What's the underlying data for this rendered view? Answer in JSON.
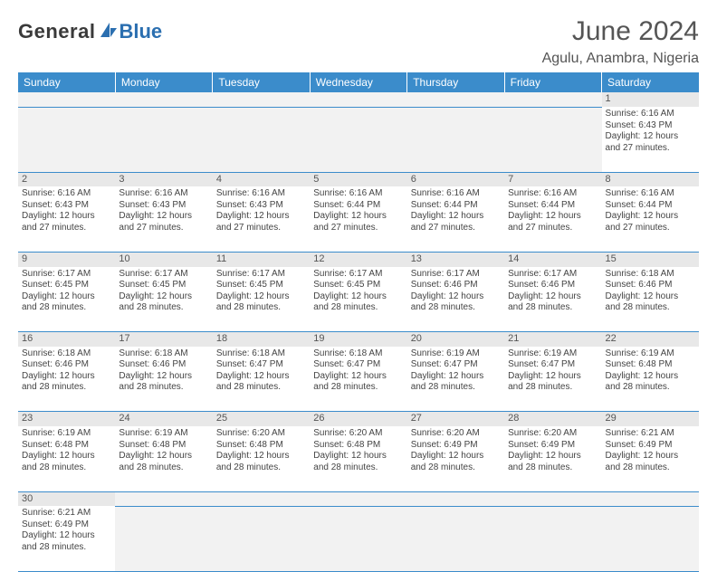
{
  "brand": {
    "name1": "General",
    "name2": "Blue",
    "color1": "#3a3a3a",
    "color2": "#2b6fb0"
  },
  "title": "June 2024",
  "location": "Agulu, Anambra, Nigeria",
  "colors": {
    "header_bg": "#3b8ccb",
    "header_fg": "#ffffff",
    "daynum_bg": "#e8e8e8",
    "border": "#3b8ccb",
    "blank_bg": "#f2f2f2",
    "text": "#444444"
  },
  "weekdays": [
    "Sunday",
    "Monday",
    "Tuesday",
    "Wednesday",
    "Thursday",
    "Friday",
    "Saturday"
  ],
  "weeks": [
    [
      null,
      null,
      null,
      null,
      null,
      null,
      {
        "n": "1",
        "sunrise": "6:16 AM",
        "sunset": "6:43 PM",
        "daylight": "12 hours and 27 minutes."
      }
    ],
    [
      {
        "n": "2",
        "sunrise": "6:16 AM",
        "sunset": "6:43 PM",
        "daylight": "12 hours and 27 minutes."
      },
      {
        "n": "3",
        "sunrise": "6:16 AM",
        "sunset": "6:43 PM",
        "daylight": "12 hours and 27 minutes."
      },
      {
        "n": "4",
        "sunrise": "6:16 AM",
        "sunset": "6:43 PM",
        "daylight": "12 hours and 27 minutes."
      },
      {
        "n": "5",
        "sunrise": "6:16 AM",
        "sunset": "6:44 PM",
        "daylight": "12 hours and 27 minutes."
      },
      {
        "n": "6",
        "sunrise": "6:16 AM",
        "sunset": "6:44 PM",
        "daylight": "12 hours and 27 minutes."
      },
      {
        "n": "7",
        "sunrise": "6:16 AM",
        "sunset": "6:44 PM",
        "daylight": "12 hours and 27 minutes."
      },
      {
        "n": "8",
        "sunrise": "6:16 AM",
        "sunset": "6:44 PM",
        "daylight": "12 hours and 27 minutes."
      }
    ],
    [
      {
        "n": "9",
        "sunrise": "6:17 AM",
        "sunset": "6:45 PM",
        "daylight": "12 hours and 28 minutes."
      },
      {
        "n": "10",
        "sunrise": "6:17 AM",
        "sunset": "6:45 PM",
        "daylight": "12 hours and 28 minutes."
      },
      {
        "n": "11",
        "sunrise": "6:17 AM",
        "sunset": "6:45 PM",
        "daylight": "12 hours and 28 minutes."
      },
      {
        "n": "12",
        "sunrise": "6:17 AM",
        "sunset": "6:45 PM",
        "daylight": "12 hours and 28 minutes."
      },
      {
        "n": "13",
        "sunrise": "6:17 AM",
        "sunset": "6:46 PM",
        "daylight": "12 hours and 28 minutes."
      },
      {
        "n": "14",
        "sunrise": "6:17 AM",
        "sunset": "6:46 PM",
        "daylight": "12 hours and 28 minutes."
      },
      {
        "n": "15",
        "sunrise": "6:18 AM",
        "sunset": "6:46 PM",
        "daylight": "12 hours and 28 minutes."
      }
    ],
    [
      {
        "n": "16",
        "sunrise": "6:18 AM",
        "sunset": "6:46 PM",
        "daylight": "12 hours and 28 minutes."
      },
      {
        "n": "17",
        "sunrise": "6:18 AM",
        "sunset": "6:46 PM",
        "daylight": "12 hours and 28 minutes."
      },
      {
        "n": "18",
        "sunrise": "6:18 AM",
        "sunset": "6:47 PM",
        "daylight": "12 hours and 28 minutes."
      },
      {
        "n": "19",
        "sunrise": "6:18 AM",
        "sunset": "6:47 PM",
        "daylight": "12 hours and 28 minutes."
      },
      {
        "n": "20",
        "sunrise": "6:19 AM",
        "sunset": "6:47 PM",
        "daylight": "12 hours and 28 minutes."
      },
      {
        "n": "21",
        "sunrise": "6:19 AM",
        "sunset": "6:47 PM",
        "daylight": "12 hours and 28 minutes."
      },
      {
        "n": "22",
        "sunrise": "6:19 AM",
        "sunset": "6:48 PM",
        "daylight": "12 hours and 28 minutes."
      }
    ],
    [
      {
        "n": "23",
        "sunrise": "6:19 AM",
        "sunset": "6:48 PM",
        "daylight": "12 hours and 28 minutes."
      },
      {
        "n": "24",
        "sunrise": "6:19 AM",
        "sunset": "6:48 PM",
        "daylight": "12 hours and 28 minutes."
      },
      {
        "n": "25",
        "sunrise": "6:20 AM",
        "sunset": "6:48 PM",
        "daylight": "12 hours and 28 minutes."
      },
      {
        "n": "26",
        "sunrise": "6:20 AM",
        "sunset": "6:48 PM",
        "daylight": "12 hours and 28 minutes."
      },
      {
        "n": "27",
        "sunrise": "6:20 AM",
        "sunset": "6:49 PM",
        "daylight": "12 hours and 28 minutes."
      },
      {
        "n": "28",
        "sunrise": "6:20 AM",
        "sunset": "6:49 PM",
        "daylight": "12 hours and 28 minutes."
      },
      {
        "n": "29",
        "sunrise": "6:21 AM",
        "sunset": "6:49 PM",
        "daylight": "12 hours and 28 minutes."
      }
    ],
    [
      {
        "n": "30",
        "sunrise": "6:21 AM",
        "sunset": "6:49 PM",
        "daylight": "12 hours and 28 minutes."
      },
      null,
      null,
      null,
      null,
      null,
      null
    ]
  ],
  "labels": {
    "sunrise": "Sunrise:",
    "sunset": "Sunset:",
    "daylight": "Daylight:"
  }
}
